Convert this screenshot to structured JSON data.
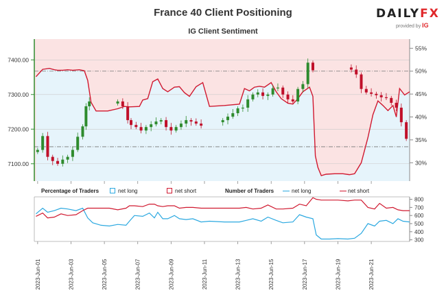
{
  "header": {
    "title": "France 40 Client Positioning",
    "subtitle": "IG Client Sentiment",
    "brand_main": "DAILY",
    "brand_accent": "FX",
    "provided_text": "provided by",
    "provided_brand": "IG"
  },
  "legend": {
    "pct_title": "Percentage of Traders",
    "pct_long": "net long",
    "pct_short": "net short",
    "num_title": "Number of Traders",
    "num_long": "net long",
    "num_short": "net short"
  },
  "colors": {
    "long": "#2aa8e0",
    "short": "#d0182f",
    "long_bg": "#e6f4fb",
    "short_bg": "#fbe3e3",
    "candle_up": "#2e8b2e",
    "candle_down": "#c0102a"
  },
  "chart_data": [
    {
      "type": "line",
      "title": "France 40 Client Positioning",
      "subtitle": "IG Client Sentiment",
      "description_series": [
        "price candles",
        "net short %"
      ],
      "y_left": {
        "ticks": [
          7100,
          7200,
          7300,
          7400
        ],
        "tick_labels": [
          "7100.00",
          "7200.00",
          "7300.00",
          "7400.00"
        ],
        "range": [
          7050,
          7460
        ]
      },
      "y_right": {
        "ticks": [
          30,
          35,
          40,
          45,
          50,
          55
        ],
        "tick_labels": [
          "30%",
          "35%",
          "40%",
          "45%",
          "50%",
          "55%"
        ],
        "range": [
          26,
          57
        ]
      },
      "x_ticks": [
        "2023-Jun-01",
        "2023-Jun-03",
        "2023-Jun-05",
        "2023-Jun-07",
        "2023-Jun-09",
        "2023-Jun-11",
        "2023-Jun-13",
        "2023-Jun-15",
        "2023-Jun-17",
        "2023-Jun-19",
        "2023-Jun-21"
      ],
      "x_range_days": [
        -0.2,
        22.3
      ],
      "reference_lines": [
        50,
        33.5
      ],
      "price_close": [
        [
          0.0,
          7140
        ],
        [
          0.3,
          7180
        ],
        [
          0.6,
          7120
        ],
        [
          0.9,
          7108
        ],
        [
          1.2,
          7100
        ],
        [
          1.5,
          7112
        ],
        [
          1.8,
          7120
        ],
        [
          2.1,
          7140
        ],
        [
          2.4,
          7178
        ],
        [
          2.7,
          7208
        ],
        [
          2.9,
          7266
        ],
        [
          3.1,
          7280
        ],
        [
          4.8,
          7280
        ],
        [
          5.1,
          7266
        ],
        [
          5.4,
          7226
        ],
        [
          5.6,
          7212
        ],
        [
          5.9,
          7206
        ],
        [
          6.2,
          7196
        ],
        [
          6.5,
          7206
        ],
        [
          6.8,
          7214
        ],
        [
          7.1,
          7222
        ],
        [
          7.4,
          7226
        ],
        [
          7.7,
          7206
        ],
        [
          8.0,
          7196
        ],
        [
          8.3,
          7206
        ],
        [
          8.6,
          7216
        ],
        [
          8.9,
          7226
        ],
        [
          9.2,
          7222
        ],
        [
          9.5,
          7216
        ],
        [
          9.8,
          7210
        ],
        [
          11.1,
          7226
        ],
        [
          11.4,
          7236
        ],
        [
          11.7,
          7246
        ],
        [
          12.0,
          7260
        ],
        [
          12.3,
          7262
        ],
        [
          12.6,
          7286
        ],
        [
          12.9,
          7300
        ],
        [
          13.2,
          7306
        ],
        [
          13.5,
          7296
        ],
        [
          13.8,
          7300
        ],
        [
          14.1,
          7318
        ],
        [
          14.4,
          7320
        ],
        [
          14.7,
          7300
        ],
        [
          15.0,
          7286
        ],
        [
          15.3,
          7280
        ],
        [
          15.6,
          7316
        ],
        [
          15.9,
          7330
        ],
        [
          16.2,
          7392
        ],
        [
          16.5,
          7370
        ],
        [
          18.8,
          7372
        ],
        [
          19.1,
          7358
        ],
        [
          19.4,
          7316
        ],
        [
          19.7,
          7306
        ],
        [
          20.0,
          7302
        ],
        [
          20.3,
          7298
        ],
        [
          20.6,
          7292
        ],
        [
          20.9,
          7290
        ],
        [
          21.2,
          7276
        ],
        [
          21.5,
          7262
        ],
        [
          21.8,
          7220
        ],
        [
          22.1,
          7172
        ]
      ],
      "net_short_pct": [
        [
          -0.1,
          48.8
        ],
        [
          0.3,
          50.4
        ],
        [
          0.7,
          50.6
        ],
        [
          1.0,
          50.3
        ],
        [
          1.2,
          50.2
        ],
        [
          1.5,
          50.2
        ],
        [
          1.8,
          50.3
        ],
        [
          2.1,
          50.2
        ],
        [
          2.5,
          50.3
        ],
        [
          2.8,
          50.1
        ],
        [
          3.0,
          48.0
        ],
        [
          3.2,
          43.2
        ],
        [
          3.5,
          41.3
        ],
        [
          4.2,
          41.3
        ],
        [
          4.8,
          41.8
        ],
        [
          5.2,
          42.3
        ],
        [
          5.5,
          42.2
        ],
        [
          6.1,
          42.3
        ],
        [
          6.3,
          43.7
        ],
        [
          6.6,
          44.0
        ],
        [
          6.9,
          47.7
        ],
        [
          7.2,
          48.3
        ],
        [
          7.5,
          46.2
        ],
        [
          7.8,
          45.5
        ],
        [
          8.2,
          46.5
        ],
        [
          8.5,
          46.6
        ],
        [
          8.8,
          45.3
        ],
        [
          9.1,
          44.5
        ],
        [
          9.5,
          46.6
        ],
        [
          9.9,
          47.5
        ],
        [
          10.3,
          42.3
        ],
        [
          11.2,
          42.5
        ],
        [
          12.1,
          42.8
        ],
        [
          12.4,
          46.2
        ],
        [
          12.7,
          45.7
        ],
        [
          13.0,
          46.5
        ],
        [
          13.3,
          46.7
        ],
        [
          13.6,
          46.5
        ],
        [
          14.0,
          47.5
        ],
        [
          14.3,
          45.5
        ],
        [
          14.6,
          44.0
        ],
        [
          15.0,
          43.0
        ],
        [
          15.3,
          42.8
        ],
        [
          15.6,
          44.0
        ],
        [
          15.9,
          45.5
        ],
        [
          16.3,
          46.5
        ],
        [
          16.5,
          44.5
        ],
        [
          16.65,
          31.5
        ],
        [
          16.8,
          29.0
        ],
        [
          17.0,
          27.2
        ],
        [
          17.3,
          27.5
        ],
        [
          17.8,
          27.6
        ],
        [
          18.3,
          27.6
        ],
        [
          18.7,
          27.4
        ],
        [
          19.0,
          27.6
        ],
        [
          19.4,
          30.0
        ],
        [
          19.8,
          35.5
        ],
        [
          20.1,
          40.5
        ],
        [
          20.4,
          43.5
        ],
        [
          20.7,
          42.5
        ],
        [
          21.0,
          41.4
        ],
        [
          21.3,
          42.5
        ],
        [
          21.5,
          40.0
        ],
        [
          21.7,
          46.2
        ],
        [
          22.0,
          44.8
        ],
        [
          22.3,
          45.5
        ]
      ],
      "gaps": [
        [
          3.1,
          4.8
        ],
        [
          9.8,
          11.1
        ],
        [
          16.5,
          18.8
        ]
      ]
    },
    {
      "type": "line",
      "title": "Number of Traders",
      "y_right": {
        "ticks": [
          300,
          400,
          500,
          600,
          700,
          800
        ],
        "range": [
          280,
          830
        ]
      },
      "series": [
        {
          "name": "net long",
          "points": [
            [
              -0.1,
              620
            ],
            [
              0.3,
              690
            ],
            [
              0.6,
              640
            ],
            [
              1.0,
              660
            ],
            [
              1.4,
              690
            ],
            [
              1.8,
              680
            ],
            [
              2.3,
              660
            ],
            [
              2.7,
              690
            ],
            [
              3.0,
              570
            ],
            [
              3.3,
              510
            ],
            [
              3.8,
              480
            ],
            [
              4.3,
              470
            ],
            [
              4.8,
              490
            ],
            [
              5.3,
              480
            ],
            [
              5.5,
              530
            ],
            [
              5.8,
              600
            ],
            [
              6.3,
              590
            ],
            [
              6.7,
              630
            ],
            [
              7.0,
              570
            ],
            [
              7.2,
              640
            ],
            [
              7.5,
              560
            ],
            [
              7.8,
              560
            ],
            [
              8.2,
              600
            ],
            [
              8.5,
              560
            ],
            [
              8.9,
              550
            ],
            [
              9.3,
              560
            ],
            [
              9.8,
              520
            ],
            [
              10.3,
              530
            ],
            [
              11.2,
              520
            ],
            [
              12.1,
              520
            ],
            [
              12.5,
              540
            ],
            [
              12.9,
              560
            ],
            [
              13.4,
              530
            ],
            [
              13.8,
              580
            ],
            [
              14.3,
              540
            ],
            [
              14.7,
              510
            ],
            [
              15.3,
              520
            ],
            [
              15.7,
              610
            ],
            [
              16.1,
              580
            ],
            [
              16.5,
              560
            ],
            [
              16.7,
              360
            ],
            [
              17.0,
              310
            ],
            [
              17.5,
              310
            ],
            [
              18.0,
              315
            ],
            [
              18.6,
              310
            ],
            [
              19.0,
              320
            ],
            [
              19.4,
              380
            ],
            [
              19.8,
              500
            ],
            [
              20.2,
              470
            ],
            [
              20.5,
              530
            ],
            [
              20.9,
              540
            ],
            [
              21.3,
              500
            ],
            [
              21.6,
              560
            ],
            [
              21.9,
              530
            ],
            [
              22.3,
              520
            ]
          ]
        },
        {
          "name": "net short",
          "points": [
            [
              -0.1,
              590
            ],
            [
              0.3,
              630
            ],
            [
              0.6,
              570
            ],
            [
              1.0,
              580
            ],
            [
              1.4,
              620
            ],
            [
              1.8,
              600
            ],
            [
              2.3,
              610
            ],
            [
              2.7,
              660
            ],
            [
              3.0,
              690
            ],
            [
              3.3,
              690
            ],
            [
              3.8,
              690
            ],
            [
              4.3,
              690
            ],
            [
              4.8,
              670
            ],
            [
              5.3,
              690
            ],
            [
              5.5,
              720
            ],
            [
              5.8,
              720
            ],
            [
              6.3,
              710
            ],
            [
              6.7,
              740
            ],
            [
              7.0,
              740
            ],
            [
              7.2,
              720
            ],
            [
              7.5,
              710
            ],
            [
              7.8,
              720
            ],
            [
              8.2,
              720
            ],
            [
              8.5,
              690
            ],
            [
              8.9,
              700
            ],
            [
              9.3,
              700
            ],
            [
              9.8,
              690
            ],
            [
              10.3,
              690
            ],
            [
              11.2,
              690
            ],
            [
              12.1,
              690
            ],
            [
              12.5,
              700
            ],
            [
              12.9,
              680
            ],
            [
              13.4,
              690
            ],
            [
              13.8,
              730
            ],
            [
              14.3,
              680
            ],
            [
              14.7,
              680
            ],
            [
              15.3,
              690
            ],
            [
              15.7,
              740
            ],
            [
              16.1,
              720
            ],
            [
              16.5,
              820
            ],
            [
              16.7,
              800
            ],
            [
              17.0,
              790
            ],
            [
              17.5,
              790
            ],
            [
              18.0,
              790
            ],
            [
              18.6,
              780
            ],
            [
              19.0,
              790
            ],
            [
              19.4,
              790
            ],
            [
              19.8,
              700
            ],
            [
              20.2,
              680
            ],
            [
              20.5,
              750
            ],
            [
              20.9,
              690
            ],
            [
              21.3,
              700
            ],
            [
              21.6,
              670
            ],
            [
              21.9,
              660
            ],
            [
              22.3,
              660
            ]
          ]
        }
      ]
    }
  ]
}
